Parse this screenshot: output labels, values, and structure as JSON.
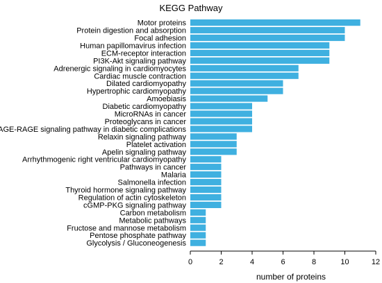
{
  "chart_data": {
    "type": "bar",
    "orientation": "horizontal",
    "title": "KEGG Pathway",
    "xlabel": "number of proteins",
    "ylabel": "",
    "xlim": [
      0,
      12
    ],
    "xticks": [
      "0",
      "2",
      "4",
      "6",
      "8",
      "10",
      "12"
    ],
    "grid": false,
    "bar_color": "#3fb0e0",
    "categories": [
      "Motor proteins",
      "Protein digestion and absorption",
      "Focal adhesion",
      "Human papillomavirus infection",
      "ECM-receptor interaction",
      "PI3K-Akt signaling pathway",
      "Adrenergic signaling in cardiomyocytes",
      "Cardiac muscle contraction",
      "Dilated cardiomyopathy",
      "Hypertrophic cardiomyopathy",
      "Amoebiasis",
      "Diabetic cardiomyopathy",
      "MicroRNAs in cancer",
      "Proteoglycans in cancer",
      "AGE-RAGE signaling pathway in diabetic complications",
      "Relaxin signaling pathway",
      "Platelet activation",
      "Apelin signaling pathway",
      "Arrhythmogenic right ventricular cardiomyopathy",
      "Pathways in cancer",
      "Malaria",
      "Salmonella infection",
      "Thyroid hormone signaling pathway",
      "Regulation of actin cytoskeleton",
      "cGMP-PKG signaling pathway",
      "Carbon metabolism",
      "Metabolic pathways",
      "Fructose and mannose metabolism",
      "Pentose phosphate pathway",
      "Glycolysis / Gluconeogenesis"
    ],
    "values": [
      11,
      10,
      10,
      9,
      9,
      9,
      7,
      7,
      6,
      6,
      5,
      4,
      4,
      4,
      4,
      3,
      3,
      3,
      2,
      2,
      2,
      2,
      2,
      2,
      2,
      1,
      1,
      1,
      1,
      1
    ]
  }
}
